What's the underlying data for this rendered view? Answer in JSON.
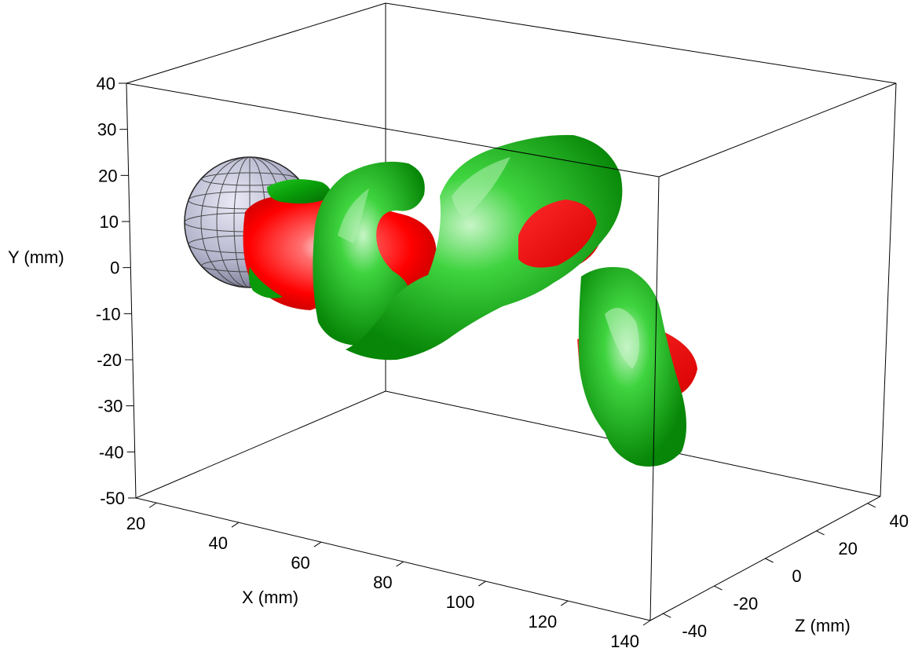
{
  "chart_data": {
    "type": "3d-isosurface",
    "title": "",
    "xlabel": "X (mm)",
    "ylabel": "Y (mm)",
    "zlabel": "Z (mm)",
    "xlim": [
      15,
      140
    ],
    "ylim": [
      -50,
      40
    ],
    "zlim": [
      -45,
      45
    ],
    "x_ticks": [
      "20",
      "40",
      "60",
      "80",
      "100",
      "120",
      "140"
    ],
    "y_ticks": [
      "40",
      "30",
      "20",
      "10",
      "0",
      "-10",
      "-20",
      "-30",
      "-40",
      "-50"
    ],
    "z_ticks": [
      "40",
      "20",
      "0",
      "-20",
      "-40"
    ],
    "grid": false,
    "box": true,
    "colors": {
      "positive_isosurface": "#00bb00",
      "negative_isosurface": "#ff0000",
      "sphere": "#b4b4cc",
      "box_lines": "#000000"
    }
  }
}
